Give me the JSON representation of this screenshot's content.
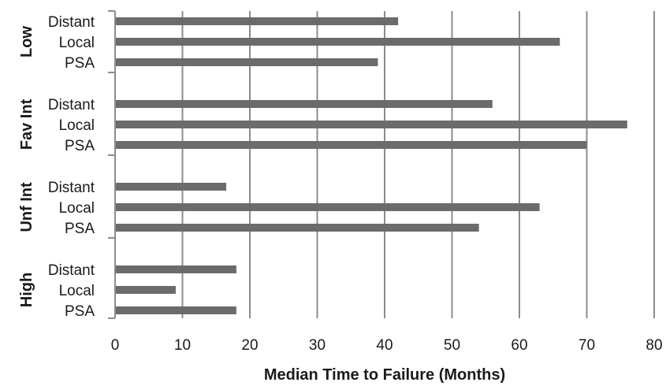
{
  "chart_data": {
    "type": "bar",
    "orientation": "horizontal",
    "title": "",
    "xlabel": "Median Time to Failure (Months)",
    "xlim": [
      0,
      80
    ],
    "xticks": [
      0,
      10,
      20,
      30,
      40,
      50,
      60,
      70,
      80
    ],
    "grid": "vertical",
    "bar_color": "#6b6b6b",
    "groups": [
      {
        "name": "Low",
        "categories": [
          "Distant",
          "Local",
          "PSA"
        ],
        "values": [
          42,
          66,
          39
        ]
      },
      {
        "name": "Fav Int",
        "categories": [
          "Distant",
          "Local",
          "PSA"
        ],
        "values": [
          56,
          76,
          70
        ]
      },
      {
        "name": "Unf Int",
        "categories": [
          "Distant",
          "Local",
          "PSA"
        ],
        "values": [
          16.5,
          63,
          54
        ]
      },
      {
        "name": "High",
        "categories": [
          "Distant",
          "Local",
          "PSA"
        ],
        "values": [
          18,
          9,
          18
        ]
      }
    ]
  }
}
